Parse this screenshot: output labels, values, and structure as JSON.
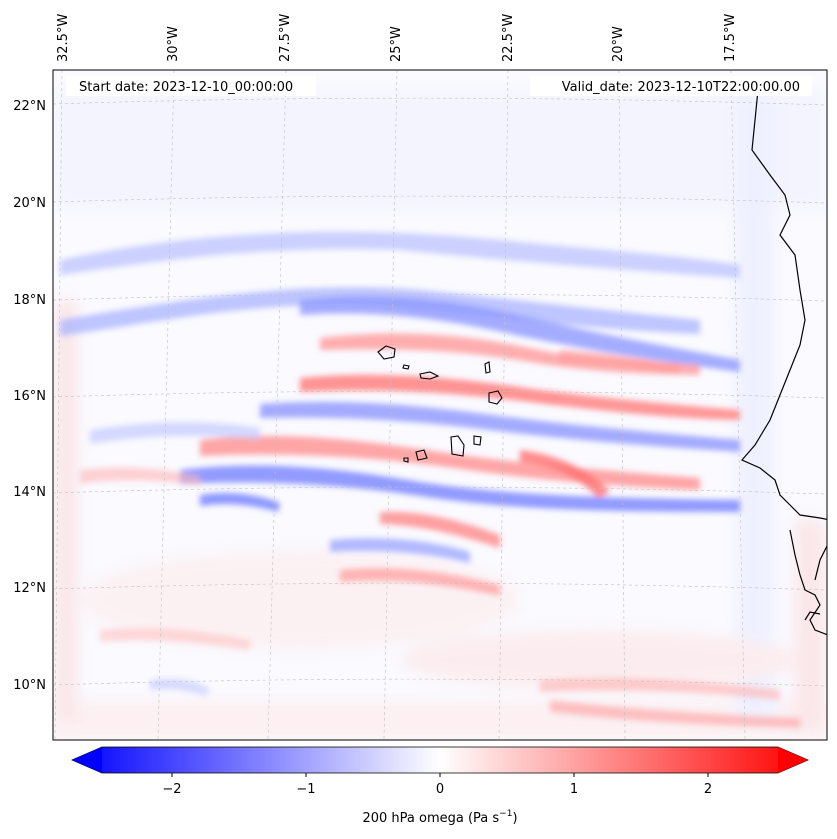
{
  "map": {
    "start_date": "Start date: 2023-12-10_00:00:00",
    "valid_date": "Valid_date: 2023-12-10T22:00:00.00",
    "lon_labels": [
      "32.5°W",
      "30°W",
      "27.5°W",
      "25°W",
      "22.5°W",
      "20°W",
      "17.5°W"
    ],
    "lat_labels": [
      "22°N",
      "20°N",
      "18°N",
      "16°N",
      "14°N",
      "12°N",
      "10°N"
    ]
  },
  "colorbar": {
    "ticks": [
      "−2",
      "−1",
      "0",
      "1",
      "2"
    ],
    "label": "200 hPa omega (Pa s",
    "label_sup": "−1",
    "label_close": ")",
    "min": -2.7,
    "max": 2.7,
    "colors": {
      "negative": "#0000ff",
      "neutral": "#ffffff",
      "positive": "#ff0000"
    }
  }
}
